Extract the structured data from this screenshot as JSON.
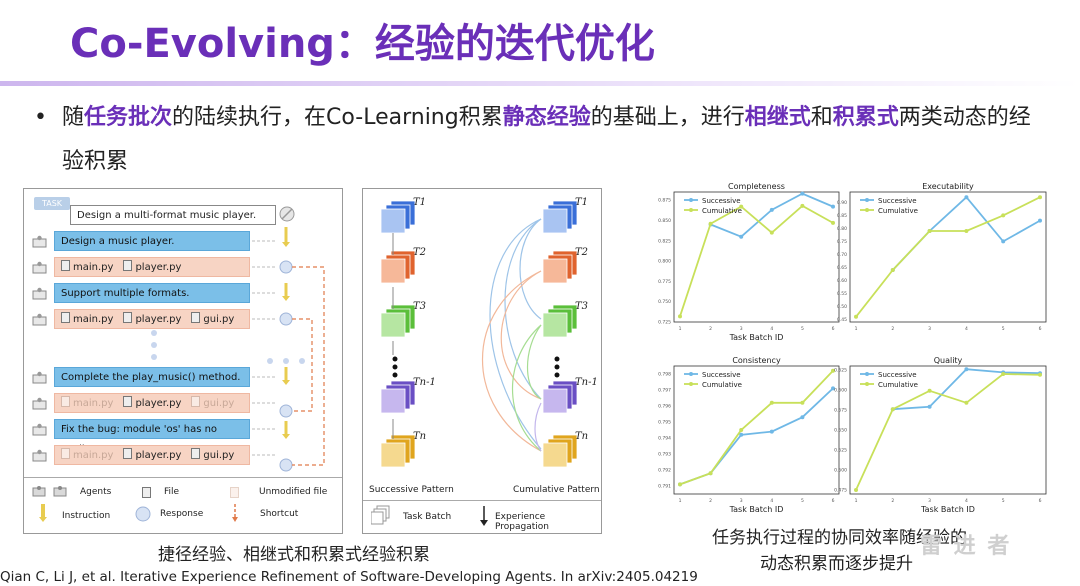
{
  "title": "Co-Evolving：经验的迭代优化",
  "bullet": {
    "p1": "随",
    "h1": "任务批次",
    "p2": "的陆续执行，在Co-Learning积累",
    "h2": "静态经验",
    "p3": "的基础上，进行",
    "h3": "相继式",
    "p4": "和",
    "h4": "积累式",
    "p5": "两类动态的经验积累"
  },
  "left_panel": {
    "task_tag": "TASK",
    "task_text": "Design a multi-format music player.",
    "rows": [
      {
        "kind": "blue",
        "text": "Design a music player."
      },
      {
        "kind": "files",
        "files": [
          {
            "name": "main.py",
            "dim": false
          },
          {
            "name": "player.py",
            "dim": false
          }
        ]
      },
      {
        "kind": "blue",
        "text": "Support multiple formats."
      },
      {
        "kind": "files",
        "files": [
          {
            "name": "main.py",
            "dim": false
          },
          {
            "name": "player.py",
            "dim": false
          },
          {
            "name": "gui.py",
            "dim": false
          }
        ]
      },
      {
        "kind": "blue",
        "text": "Complete the play_music() method."
      },
      {
        "kind": "files",
        "files": [
          {
            "name": "main.py",
            "dim": true
          },
          {
            "name": "player.py",
            "dim": false
          },
          {
            "name": "gui.py",
            "dim": true
          }
        ]
      },
      {
        "kind": "blue",
        "text": "Fix the bug: module 'os' has no attribute ..."
      },
      {
        "kind": "files",
        "files": [
          {
            "name": "main.py",
            "dim": true
          },
          {
            "name": "player.py",
            "dim": false
          },
          {
            "name": "gui.py",
            "dim": false
          }
        ]
      }
    ],
    "legend": {
      "agents": "Agents",
      "file": "File",
      "unmodified": "Unmodified file",
      "instruction": "Instruction",
      "response": "Response",
      "shortcut": "Shortcut"
    },
    "caption": "捷径经验、相继式和积累式经验积累"
  },
  "mid_panel": {
    "successive": "Successive Pattern",
    "cumulative": "Cumulative Pattern",
    "task_batch": "Task Batch",
    "propagation": "Experience Propagation",
    "labels": [
      "T1",
      "T2",
      "T3",
      "Tn-1",
      "Tn"
    ]
  },
  "reference": "Qian C, Li J, et al. Iterative Experience Refinement of Software-Developing Agents. In arXiv:2405.04219",
  "charts_caption": {
    "line1": "任务执行过程的协同效率随经验的",
    "line2": "动态积累而逐步提升"
  },
  "watermark": "雷 进 者",
  "colors": {
    "successive": "#6fb8e6",
    "cumulative": "#c8e05a",
    "accent": "#6a2fb8"
  },
  "chart_data": [
    {
      "type": "line",
      "title": "Completeness",
      "xlabel": "Task Batch ID",
      "ylabel": "",
      "x": [
        1,
        2,
        3,
        4,
        5,
        6
      ],
      "ylim": [
        0.725,
        0.885
      ],
      "yticks": [
        "0.725",
        "0.750",
        "0.775",
        "0.800",
        "0.825",
        "0.850",
        "0.875"
      ],
      "series": [
        {
          "name": "Successive",
          "values": [
            null,
            0.845,
            0.83,
            0.863,
            0.883,
            0.867
          ]
        },
        {
          "name": "Cumulative",
          "values": [
            0.732,
            0.846,
            0.867,
            0.835,
            0.868,
            0.847
          ]
        }
      ]
    },
    {
      "type": "line",
      "title": "Executability",
      "xlabel": "",
      "ylabel": "",
      "x": [
        1,
        2,
        3,
        4,
        5,
        6
      ],
      "ylim": [
        0.44,
        0.94
      ],
      "yticks": [
        "0.90",
        "0.85",
        "0.80",
        "0.75",
        "0.70",
        "0.65",
        "0.60",
        "0.55",
        "0.50",
        "0.45"
      ],
      "series": [
        {
          "name": "Successive",
          "values": [
            null,
            0.64,
            0.79,
            0.92,
            0.75,
            0.83
          ]
        },
        {
          "name": "Cumulative",
          "values": [
            0.46,
            0.64,
            0.79,
            0.79,
            0.85,
            0.92
          ]
        }
      ]
    },
    {
      "type": "line",
      "title": "Consistency",
      "xlabel": "Task Batch ID",
      "ylabel": "",
      "x": [
        1,
        2,
        3,
        4,
        5,
        6
      ],
      "ylim": [
        0.7905,
        0.7985
      ],
      "yticks": [
        "0.798",
        "0.797",
        "0.796",
        "0.795",
        "0.794",
        "0.793",
        "0.792",
        "0.791"
      ],
      "series": [
        {
          "name": "Successive",
          "values": [
            0.7911,
            0.7918,
            0.7942,
            0.7944,
            0.7953,
            0.7971
          ]
        },
        {
          "name": "Cumulative",
          "values": [
            0.7911,
            0.7918,
            0.7945,
            0.7962,
            0.7962,
            0.7982
          ]
        }
      ]
    },
    {
      "type": "line",
      "title": "Quality",
      "xlabel": "Task Batch ID",
      "ylabel": "",
      "x": [
        1,
        2,
        3,
        4,
        5,
        6
      ],
      "ylim": [
        0.47,
        0.63
      ],
      "yticks": [
        "0.625",
        "0.600",
        "0.575",
        "0.550",
        "0.525",
        "0.500",
        "0.475"
      ],
      "series": [
        {
          "name": "Successive",
          "values": [
            null,
            0.576,
            0.579,
            0.626,
            0.622,
            0.621
          ]
        },
        {
          "name": "Cumulative",
          "values": [
            0.475,
            0.576,
            0.599,
            0.584,
            0.62,
            0.619
          ]
        }
      ]
    }
  ]
}
